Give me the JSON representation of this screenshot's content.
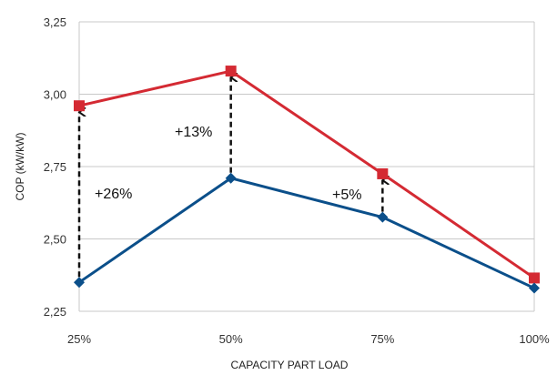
{
  "chart_data": {
    "type": "line",
    "categories": [
      "25%",
      "50%",
      "75%",
      "100%"
    ],
    "x_values": [
      25,
      50,
      75,
      100
    ],
    "xlabel": "CAPACITY PART LOAD",
    "ylabel": "COP (kW/kW)",
    "ylim": [
      2.25,
      3.25
    ],
    "yticks": [
      "2,25",
      "2,50",
      "2,75",
      "3,00",
      "3,25"
    ],
    "ytick_values": [
      2.25,
      2.5,
      2.75,
      3.0,
      3.25
    ],
    "grid": "horizontal",
    "series": [
      {
        "values": [
          2.96,
          3.08,
          2.725,
          2.365
        ],
        "color": "#d42a33",
        "marker": "square"
      },
      {
        "values": [
          2.35,
          2.71,
          2.575,
          2.33
        ],
        "color": "#0b4f8a",
        "marker": "diamond"
      }
    ],
    "annotations": [
      {
        "text": "+26%",
        "category_index": 0
      },
      {
        "text": "+13%",
        "category_index": 1
      },
      {
        "text": "+5%",
        "category_index": 2
      }
    ]
  }
}
